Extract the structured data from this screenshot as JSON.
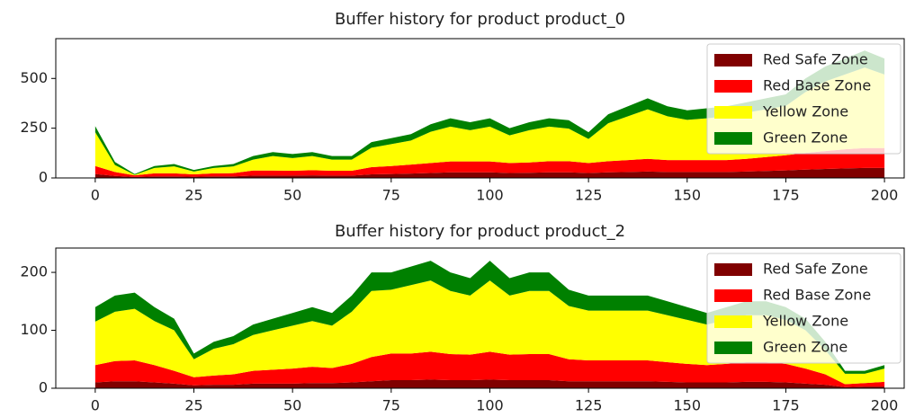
{
  "chart_data": [
    {
      "type": "stackplot",
      "title": "Buffer history for product product_0",
      "x": [
        0,
        5,
        10,
        15,
        20,
        25,
        30,
        35,
        40,
        45,
        50,
        55,
        60,
        65,
        70,
        75,
        80,
        85,
        90,
        95,
        100,
        105,
        110,
        115,
        120,
        125,
        130,
        135,
        140,
        145,
        150,
        155,
        160,
        165,
        170,
        175,
        180,
        185,
        190,
        195,
        200
      ],
      "series": [
        {
          "name": "Red Safe Zone",
          "color": "#800000",
          "values": [
            20,
            10,
            5,
            8,
            8,
            6,
            8,
            8,
            12,
            12,
            12,
            13,
            12,
            12,
            18,
            20,
            22,
            25,
            28,
            28,
            28,
            25,
            26,
            28,
            28,
            25,
            28,
            30,
            32,
            30,
            30,
            30,
            30,
            32,
            35,
            38,
            42,
            45,
            48,
            50,
            50
          ]
        },
        {
          "name": "Red Base Zone",
          "color": "#ff0000",
          "values": [
            40,
            20,
            8,
            15,
            15,
            12,
            15,
            16,
            25,
            25,
            24,
            26,
            24,
            24,
            36,
            40,
            45,
            50,
            55,
            55,
            55,
            50,
            52,
            56,
            56,
            50,
            56,
            60,
            64,
            60,
            60,
            60,
            60,
            64,
            70,
            76,
            84,
            90,
            96,
            100,
            100
          ]
        },
        {
          "name": "Yellow Zone",
          "color": "#ffff00",
          "values": [
            170,
            35,
            3,
            27,
            35,
            14,
            27,
            34,
            55,
            73,
            64,
            71,
            56,
            56,
            98,
            110,
            121,
            157,
            175,
            157,
            175,
            139,
            162,
            174,
            164,
            121,
            191,
            220,
            249,
            220,
            202,
            210,
            220,
            232,
            240,
            248,
            306,
            350,
            376,
            405,
            370
          ]
        },
        {
          "name": "Green Zone",
          "color": "#008000",
          "values": [
            30,
            15,
            4,
            10,
            12,
            8,
            10,
            12,
            18,
            20,
            20,
            20,
            18,
            18,
            28,
            30,
            32,
            38,
            42,
            40,
            42,
            36,
            40,
            42,
            42,
            34,
            45,
            50,
            55,
            50,
            48,
            50,
            50,
            52,
            55,
            58,
            68,
            75,
            80,
            85,
            80
          ]
        }
      ],
      "xlim": [
        -10,
        205
      ],
      "xticks": [
        0,
        25,
        50,
        75,
        100,
        125,
        150,
        175,
        200
      ],
      "ylim": [
        0,
        700
      ],
      "yticks": [
        0,
        250,
        500
      ],
      "legend": "upper right"
    },
    {
      "type": "stackplot",
      "title": "Buffer history for product product_2",
      "x": [
        0,
        5,
        10,
        15,
        20,
        25,
        30,
        35,
        40,
        45,
        50,
        55,
        60,
        65,
        70,
        75,
        80,
        85,
        90,
        95,
        100,
        105,
        110,
        115,
        120,
        125,
        130,
        135,
        140,
        145,
        150,
        155,
        160,
        165,
        170,
        175,
        180,
        185,
        190,
        195,
        200
      ],
      "series": [
        {
          "name": "Red Safe Zone",
          "color": "#800000",
          "values": [
            10,
            12,
            12,
            10,
            8,
            5,
            6,
            6,
            8,
            8,
            8,
            9,
            9,
            10,
            12,
            14,
            14,
            15,
            14,
            14,
            15,
            14,
            14,
            14,
            12,
            12,
            12,
            12,
            12,
            11,
            10,
            10,
            10,
            11,
            11,
            10,
            8,
            6,
            2,
            3,
            3
          ]
        },
        {
          "name": "Red Base Zone",
          "color": "#ff0000",
          "values": [
            30,
            35,
            36,
            30,
            22,
            14,
            16,
            18,
            22,
            24,
            26,
            28,
            26,
            32,
            42,
            46,
            46,
            48,
            45,
            44,
            48,
            44,
            45,
            45,
            38,
            36,
            36,
            36,
            36,
            34,
            32,
            30,
            32,
            34,
            34,
            32,
            26,
            18,
            5,
            6,
            8
          ]
        },
        {
          "name": "Yellow Zone",
          "color": "#ffff00",
          "values": [
            75,
            85,
            89,
            76,
            70,
            31,
            46,
            52,
            62,
            68,
            74,
            79,
            73,
            90,
            114,
            110,
            118,
            123,
            109,
            102,
            123,
            102,
            109,
            109,
            92,
            86,
            86,
            86,
            86,
            81,
            76,
            70,
            76,
            81,
            81,
            76,
            66,
            42,
            18,
            16,
            23
          ]
        },
        {
          "name": "Green Zone",
          "color": "#008000",
          "values": [
            25,
            28,
            28,
            24,
            20,
            10,
            12,
            14,
            18,
            20,
            22,
            24,
            22,
            28,
            32,
            30,
            32,
            34,
            32,
            30,
            34,
            30,
            32,
            32,
            28,
            26,
            26,
            26,
            26,
            24,
            22,
            20,
            22,
            24,
            24,
            22,
            20,
            14,
            5,
            5,
            6
          ]
        }
      ],
      "xlim": [
        -10,
        205
      ],
      "xticks": [
        0,
        25,
        50,
        75,
        100,
        125,
        150,
        175,
        200
      ],
      "ylim": [
        0,
        242
      ],
      "yticks": [
        0,
        100,
        200
      ],
      "legend": "upper right"
    }
  ]
}
